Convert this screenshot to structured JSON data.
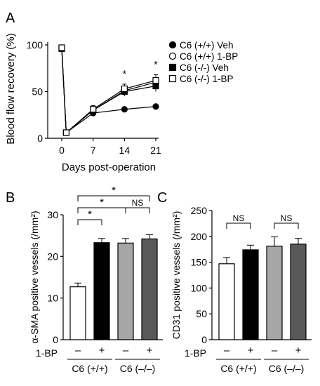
{
  "panel_labels": {
    "a": "A",
    "b": "B",
    "c": "C"
  },
  "chart_data": [
    {
      "type": "line",
      "panel": "A",
      "xlabel": "Days post-operation",
      "ylabel": "Blood flow recovery (%)",
      "x": [
        0,
        1,
        7,
        14,
        21
      ],
      "xticks": [
        "0",
        "7",
        "14",
        "21"
      ],
      "xtick_values": [
        0,
        7,
        14,
        21
      ],
      "xlim": [
        0,
        21
      ],
      "ylim": [
        0,
        100
      ],
      "yticks": [
        0,
        50,
        100
      ],
      "series": [
        {
          "name": "C6 (+/+) Veh",
          "marker": "circle",
          "fill": "#000000",
          "values": [
            97,
            6,
            27,
            31,
            34
          ],
          "errors": [
            2,
            1,
            3,
            2,
            2
          ]
        },
        {
          "name": "C6 (+/+) 1-BP",
          "marker": "circle",
          "fill": "#ffffff",
          "values": [
            96,
            6,
            30,
            51,
            60
          ],
          "errors": [
            2,
            1,
            3,
            4,
            5
          ]
        },
        {
          "name": "C6 (-/-) Veh",
          "marker": "square",
          "fill": "#000000",
          "values": [
            96,
            6,
            30,
            50,
            56
          ],
          "errors": [
            3,
            1,
            3,
            5,
            6
          ]
        },
        {
          "name": "C6 (-/-) 1-BP",
          "marker": "square",
          "fill": "#ffffff",
          "values": [
            97,
            6,
            31,
            53,
            62
          ],
          "errors": [
            2,
            1,
            4,
            5,
            6
          ]
        }
      ],
      "significance": [
        {
          "x": 14,
          "label": "*"
        },
        {
          "x": 21,
          "label": "*"
        }
      ]
    },
    {
      "type": "bar",
      "panel": "B",
      "ylabel": "α-SMA positive vessels (/mm²)",
      "ylim": [
        0,
        30
      ],
      "yticks": [
        0,
        10,
        20,
        30
      ],
      "values": [
        12.7,
        23.3,
        23.2,
        24.2
      ],
      "errors": [
        0.9,
        1.0,
        1.1,
        1.0
      ],
      "bar_colors": [
        "#ffffff",
        "#000000",
        "#a6a6a6",
        "#595959"
      ],
      "treatment_label": "1-BP",
      "treatment": [
        "–",
        "+",
        "–",
        "+"
      ],
      "groups": [
        "C6 (+/+)",
        "C6 (–/–)"
      ],
      "comparisons": [
        {
          "from": 0,
          "to": 1,
          "label": "*"
        },
        {
          "from": 0,
          "to": 2,
          "label": "*"
        },
        {
          "from": 0,
          "to": 3,
          "label": "*"
        },
        {
          "from": 2,
          "to": 3,
          "label": "NS"
        }
      ]
    },
    {
      "type": "bar",
      "panel": "C",
      "ylabel": "CD31 positive vessels (/mm²)",
      "ylim": [
        0,
        250
      ],
      "yticks": [
        0,
        50,
        100,
        150,
        200,
        250
      ],
      "values": [
        147,
        174,
        181,
        185
      ],
      "errors": [
        12,
        9,
        18,
        11
      ],
      "bar_colors": [
        "#ffffff",
        "#000000",
        "#a6a6a6",
        "#595959"
      ],
      "treatment_label": "1-BP",
      "treatment": [
        "–",
        "+",
        "–",
        "+"
      ],
      "groups": [
        "C6 (+/+)",
        "C6 (–/–)"
      ],
      "comparisons": [
        {
          "from": 0,
          "to": 1,
          "label": "NS"
        },
        {
          "from": 2,
          "to": 3,
          "label": "NS"
        }
      ]
    }
  ]
}
